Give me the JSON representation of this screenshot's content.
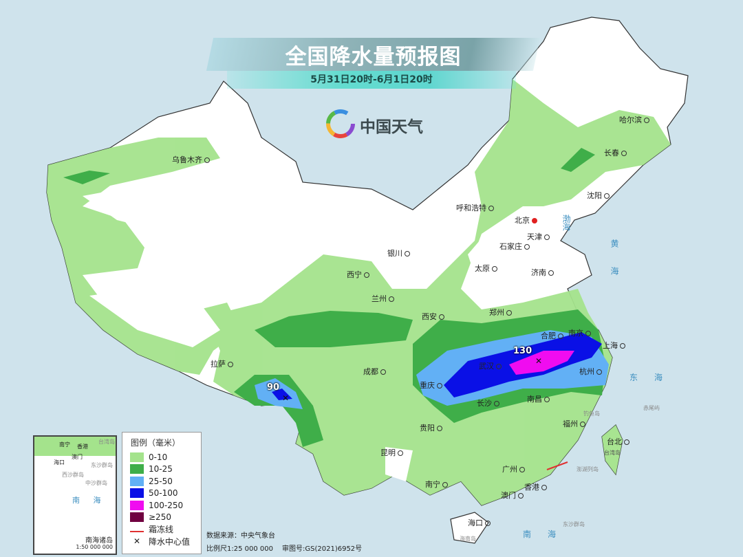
{
  "title": "全国降水量预报图",
  "subtitle": "5月31日20时-6月1日20时",
  "logo": {
    "text": "中国天气",
    "icon": "pinwheel-logo"
  },
  "colors": {
    "sea": "#cfe3ec",
    "land": "#ffffff",
    "0-10": "#a4e38c",
    "10-25": "#3fae49",
    "25-50": "#62b0f5",
    "50-100": "#0a10e6",
    "100-250": "#f00cf0",
    "250+": "#700040",
    "frost": "#e03030"
  },
  "cities": [
    {
      "name": "乌鲁木齐"
    },
    {
      "name": "哈尔滨"
    },
    {
      "name": "长春"
    },
    {
      "name": "沈阳"
    },
    {
      "name": "呼和浩特"
    },
    {
      "name": "北京"
    },
    {
      "name": "天津"
    },
    {
      "name": "石家庄"
    },
    {
      "name": "太原"
    },
    {
      "name": "济南"
    },
    {
      "name": "银川"
    },
    {
      "name": "西宁"
    },
    {
      "name": "兰州"
    },
    {
      "name": "西安"
    },
    {
      "name": "郑州"
    },
    {
      "name": "合肥"
    },
    {
      "name": "南京"
    },
    {
      "name": "上海"
    },
    {
      "name": "武汉"
    },
    {
      "name": "杭州"
    },
    {
      "name": "成都"
    },
    {
      "name": "拉萨"
    },
    {
      "name": "重庆"
    },
    {
      "name": "长沙"
    },
    {
      "name": "南昌"
    },
    {
      "name": "贵阳"
    },
    {
      "name": "昆明"
    },
    {
      "name": "福州"
    },
    {
      "name": "台北"
    },
    {
      "name": "南宁"
    },
    {
      "name": "广州"
    },
    {
      "name": "香港"
    },
    {
      "name": "澳门"
    },
    {
      "name": "海口"
    }
  ],
  "seas": {
    "bohai": "渤海",
    "huanghai": "黄海",
    "donghai": "东海",
    "nanhai": "南海"
  },
  "islands": {
    "taiwan": "台湾岛",
    "diaoyu": "钓鱼岛",
    "chiwei": "赤尾屿",
    "penghu": "澎湖列岛",
    "dongsha": "东沙群岛",
    "hainan": "海南岛"
  },
  "maxima": [
    {
      "value": "90"
    },
    {
      "value": "130"
    }
  ],
  "legend": {
    "title": "图例（毫米）",
    "items": [
      {
        "label": "0-10",
        "color": "#a4e38c"
      },
      {
        "label": "10-25",
        "color": "#3fae49"
      },
      {
        "label": "25-50",
        "color": "#62b0f5"
      },
      {
        "label": "50-100",
        "color": "#0a10e6"
      },
      {
        "label": "100-250",
        "color": "#f00cf0"
      },
      {
        "label": "≥250",
        "color": "#700040"
      }
    ],
    "frost_line": "霜冻线",
    "center_value": "降水中心值"
  },
  "info": {
    "source": "数据来源：中央气象台",
    "scale": "比例尺1:25 000 000",
    "review": "审图号:GS(2021)6952号"
  },
  "inset": {
    "title": "南海诸岛",
    "scale": "1:50 000 000",
    "sea": "南 海",
    "labels": [
      "南宁",
      "香港",
      "海口",
      "澳门",
      "台湾岛",
      "东沙群岛",
      "西沙群岛",
      "中沙群岛"
    ]
  }
}
